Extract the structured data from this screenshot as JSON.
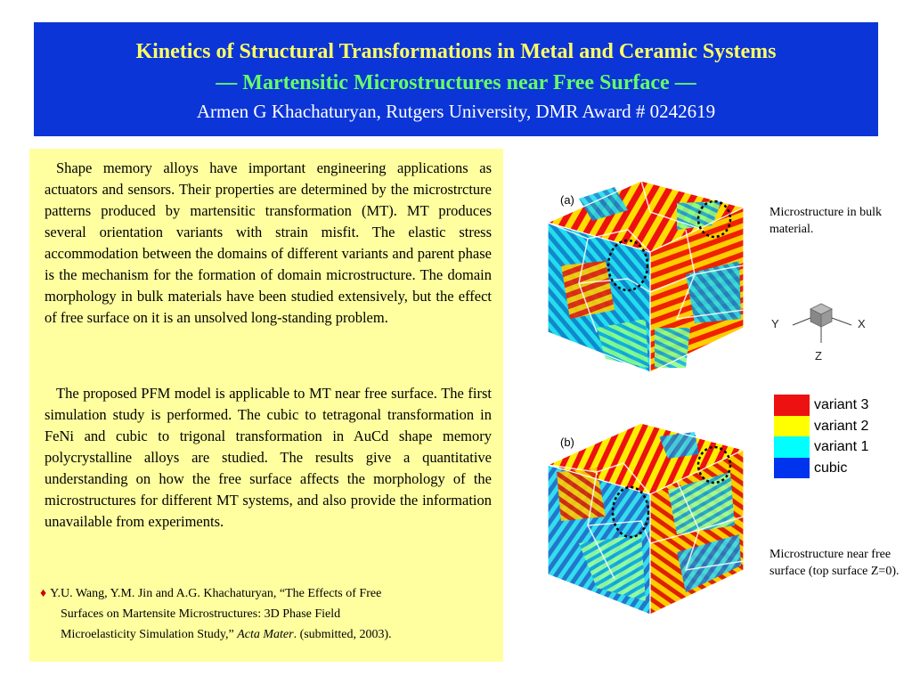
{
  "header": {
    "title": "Kinetics of Structural Transformations in Metal and Ceramic Systems",
    "subtitle": "— Martensitic Microstructures near Free Surface —",
    "author_line": "Armen G Khachaturyan, Rutgers University, DMR Award # 0242619",
    "colors": {
      "background": "#0b35d6",
      "title": "#ffff66",
      "subtitle": "#66ff66",
      "author": "#ffffff"
    }
  },
  "body": {
    "paragraph1": "Shape memory alloys have important engineering applications as actuators and sensors. Their properties are determined by the microstrcture patterns produced by martensitic transformation (MT). MT produces several orientation variants with strain misfit. The elastic stress accommodation between the domains of different variants and parent phase is the mechanism for the formation of domain microstructure. The domain morphology in bulk materials have been studied extensively, but the effect of free surface on it is an unsolved long-standing problem.",
    "paragraph2": "The proposed PFM model is applicable to MT near free surface. The first simulation study is performed. The cubic to tetragonal transformation in FeNi and cubic to trigonal transformation in AuCd shape memory polycrystalline alloys are studied. The results give a quantitative understanding on how the free surface affects the morphology of the microstructures for different MT systems, and also provide the information unavailable from experiments.",
    "panel_color": "#ffffa0"
  },
  "reference": {
    "bullet": "♦",
    "line1": "Y.U. Wang, Y.M. Jin and A.G. Khachaturyan, “The Effects of Free",
    "line2": "Surfaces on Martensite Microstructures: 3D Phase Field",
    "line3_prefix": "Microelasticity Simulation Study,” ",
    "journal": "Acta Mater",
    "line3_suffix": ". (submitted, 2003)."
  },
  "figures": {
    "cube_a_label": "(a)",
    "cube_b_label": "(b)",
    "caption_a": "Microstructure in bulk material.",
    "caption_b": "Microstructure near free surface (top surface Z=0).",
    "axes": {
      "x": "X",
      "y": "Y",
      "z": "Z"
    }
  },
  "legend": [
    {
      "label": "variant 3",
      "color": "#ee1111"
    },
    {
      "label": "variant 2",
      "color": "#ffff00"
    },
    {
      "label": "variant 1",
      "color": "#00ffff"
    },
    {
      "label": "cubic",
      "color": "#0033ee"
    }
  ]
}
